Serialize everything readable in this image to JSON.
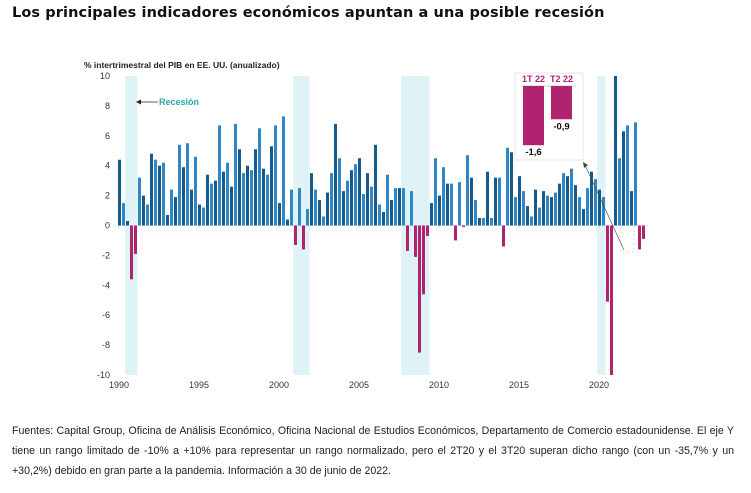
{
  "title": "Los principales indicadores económicos apuntan a una posible recesión",
  "footer": "Fuentes: Capital Group, Oficina de Análisis Económico, Oficina Nacional de Estudios Económicos, Departamento de Comercio estadounidense. El eje Y tiene un rango limitado de -10% a +10% para representar un rango normalizado, pero el 2T20 y el 3T20 superan dicho rango (con un -35,7% y un +30,2%) debido en gran parte a la pandemia. Información a 30 de junio de 2022.",
  "colors": {
    "positive": "#155a8a",
    "positive_alt": "#2f86c4",
    "negative": "#b0246f",
    "recession": "#dff2f5",
    "annotation": "#2aa7a9"
  },
  "chart_data": {
    "type": "bar",
    "title": "% intertrimestral del PIB en EE. UU. (anualizado)",
    "xlabel": "",
    "ylabel": "% intertrimestral del PIB en EE. UU. (anualizado)",
    "ylim": [
      -10,
      10
    ],
    "yticks": [
      10,
      8,
      6,
      4,
      2,
      0,
      -2,
      -4,
      -6,
      -8,
      -10
    ],
    "xticks": [
      "1990",
      "1995",
      "2000",
      "2005",
      "2010",
      "2015",
      "2020"
    ],
    "x_start": "1990 Q1",
    "x_end": "2022 Q2",
    "grid": false,
    "clipped_note": "Values beyond ±10 are clipped to the axis range (2T20 -35,7; 3T20 +30,2)",
    "values": [
      4.4,
      1.5,
      0.3,
      -3.6,
      -1.9,
      3.2,
      2.0,
      1.4,
      4.8,
      4.4,
      4.0,
      4.2,
      0.7,
      2.4,
      1.9,
      5.4,
      3.9,
      5.5,
      2.4,
      4.6,
      1.4,
      1.2,
      3.4,
      2.8,
      3.0,
      6.7,
      3.6,
      4.2,
      2.6,
      6.8,
      5.1,
      3.5,
      4.0,
      3.7,
      5.1,
      6.5,
      3.8,
      3.4,
      5.3,
      6.7,
      1.5,
      7.3,
      0.4,
      2.4,
      -1.3,
      2.5,
      -1.6,
      1.1,
      3.5,
      2.4,
      1.7,
      0.6,
      2.2,
      3.5,
      6.8,
      4.5,
      2.3,
      3.0,
      3.7,
      4.1,
      4.5,
      2.1,
      3.5,
      2.6,
      5.4,
      1.4,
      0.9,
      3.4,
      1.7,
      2.5,
      2.5,
      2.5,
      -1.7,
      2.3,
      -2.1,
      -8.5,
      -4.6,
      -0.7,
      1.5,
      4.5,
      2.0,
      3.9,
      2.8,
      2.8,
      -1.0,
      2.9,
      -0.1,
      4.7,
      3.2,
      1.7,
      0.5,
      0.5,
      3.6,
      0.5,
      3.2,
      3.2,
      -1.4,
      5.2,
      4.9,
      1.9,
      3.3,
      2.3,
      1.3,
      0.6,
      2.4,
      1.2,
      2.3,
      2.0,
      1.9,
      2.2,
      2.8,
      3.5,
      3.3,
      3.8,
      2.7,
      1.9,
      1.1,
      2.5,
      3.6,
      3.1,
      2.4,
      1.9,
      -5.1,
      -10,
      10,
      4.5,
      6.3,
      6.7,
      2.3,
      6.9,
      -1.6,
      -0.9
    ],
    "recessions": [
      {
        "start": "1990 Q3",
        "end": "1991 Q1"
      },
      {
        "start": "2001 Q1",
        "end": "2001 Q4"
      },
      {
        "start": "2007 Q4",
        "end": "2009 Q2"
      },
      {
        "start": "2020 Q1",
        "end": "2020 Q2"
      }
    ],
    "annotations": {
      "recession_label": "Recesión"
    },
    "inset": {
      "categories": [
        "1T 22",
        "T2 22"
      ],
      "values": [
        -1.6,
        -0.9
      ],
      "value_labels": [
        "-1,6",
        "-0,9"
      ]
    }
  }
}
